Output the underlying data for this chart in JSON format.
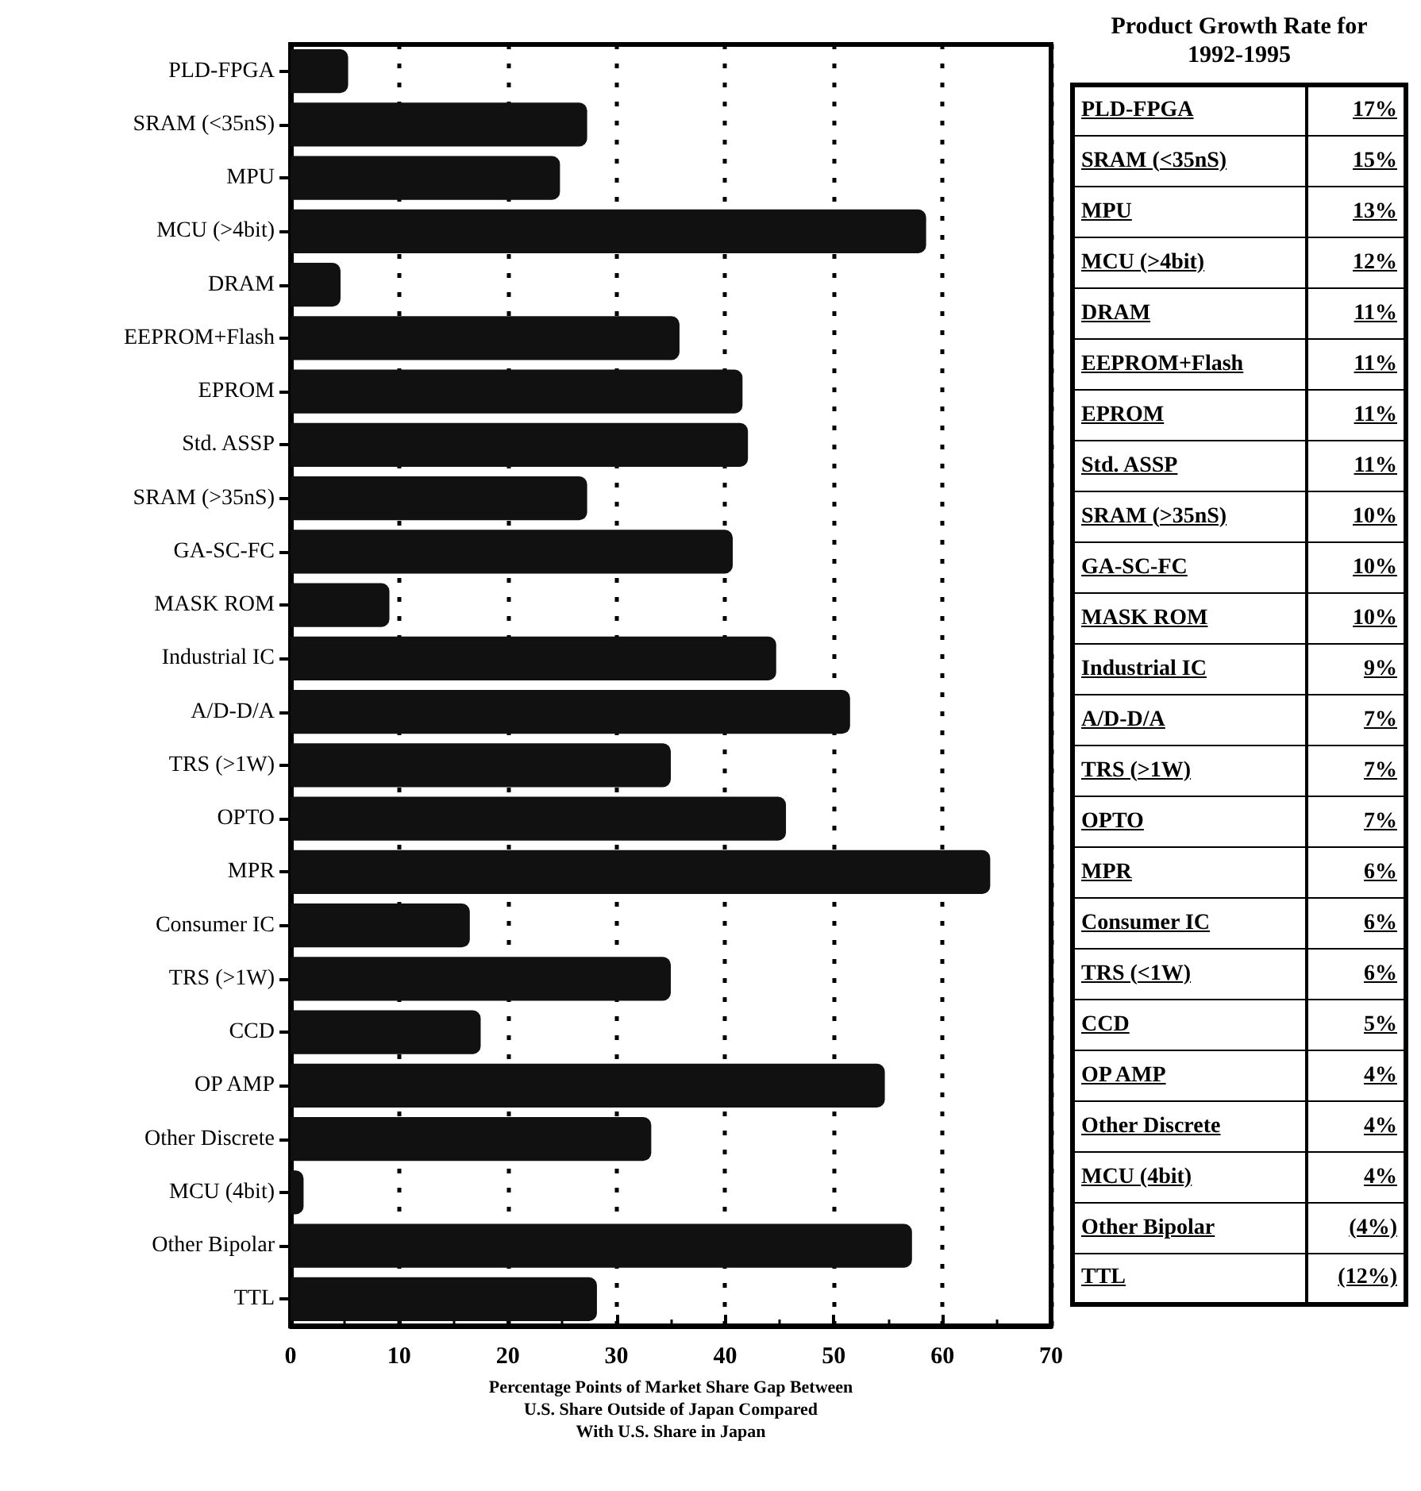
{
  "chart_data": [
    {
      "type": "bar",
      "orientation": "horizontal",
      "xlabel": "Percentage Points of Market Share Gap Between\nU.S. Share Outside of Japan Compared\nWith U.S. Share in Japan",
      "categories": [
        "PLD-FPGA",
        "SRAM (<35nS)",
        "MPU",
        "MCU (>4bit)",
        "DRAM",
        "EEPROM+Flash",
        "EPROM",
        "Std. ASSP",
        "SRAM (>35nS)",
        "GA-SC-FC",
        "MASK ROM",
        "Industrial IC",
        "A/D-D/A",
        "TRS (>1W)",
        "OPTO",
        "MPR",
        "Consumer IC",
        "TRS (>1W)",
        "CCD",
        "OP AMP",
        "Other Discrete",
        "MCU (4bit)",
        "Other Bipolar",
        "TTL"
      ],
      "values": [
        5.3,
        27.3,
        24.8,
        58.5,
        4.6,
        35.8,
        41.6,
        42.1,
        27.3,
        40.7,
        9.1,
        44.7,
        51.5,
        35,
        45.6,
        64.4,
        16.5,
        35,
        17.5,
        54.7,
        33.2,
        1.2,
        57.2,
        28.2
      ],
      "color": "#111111",
      "xlim": [
        0,
        70
      ],
      "xticks": [
        0,
        10,
        20,
        30,
        40,
        50,
        60,
        70
      ],
      "grid": "x"
    },
    {
      "type": "other",
      "title": "Product Growth Rate for\n1992-1995",
      "categories": [
        "PLD-FPGA",
        "SRAM (<35nS)",
        "MPU",
        "MCU (>4bit)",
        "DRAM",
        "EEPROM+Flash",
        "EPROM",
        "Std. ASSP",
        "SRAM (>35nS)",
        "GA-SC-FC",
        "MASK ROM",
        "Industrial IC",
        "A/D-D/A",
        "TRS (>1W)",
        "OPTO",
        "MPR",
        "Consumer IC",
        "TRS (<1W)",
        "CCD",
        "OP AMP",
        "Other Discrete",
        "MCU (4bit)",
        "Other Bipolar",
        "TTL"
      ],
      "value_labels": [
        "17%",
        "15%",
        "13%",
        "12%",
        "11%",
        "11%",
        "11%",
        "11%",
        "10%",
        "10%",
        "10%",
        "9%",
        "7%",
        "7%",
        "7%",
        "6%",
        "6%",
        "6%",
        "5%",
        "4%",
        "4%",
        "4%",
        "(4%)",
        "(12%)"
      ]
    }
  ]
}
